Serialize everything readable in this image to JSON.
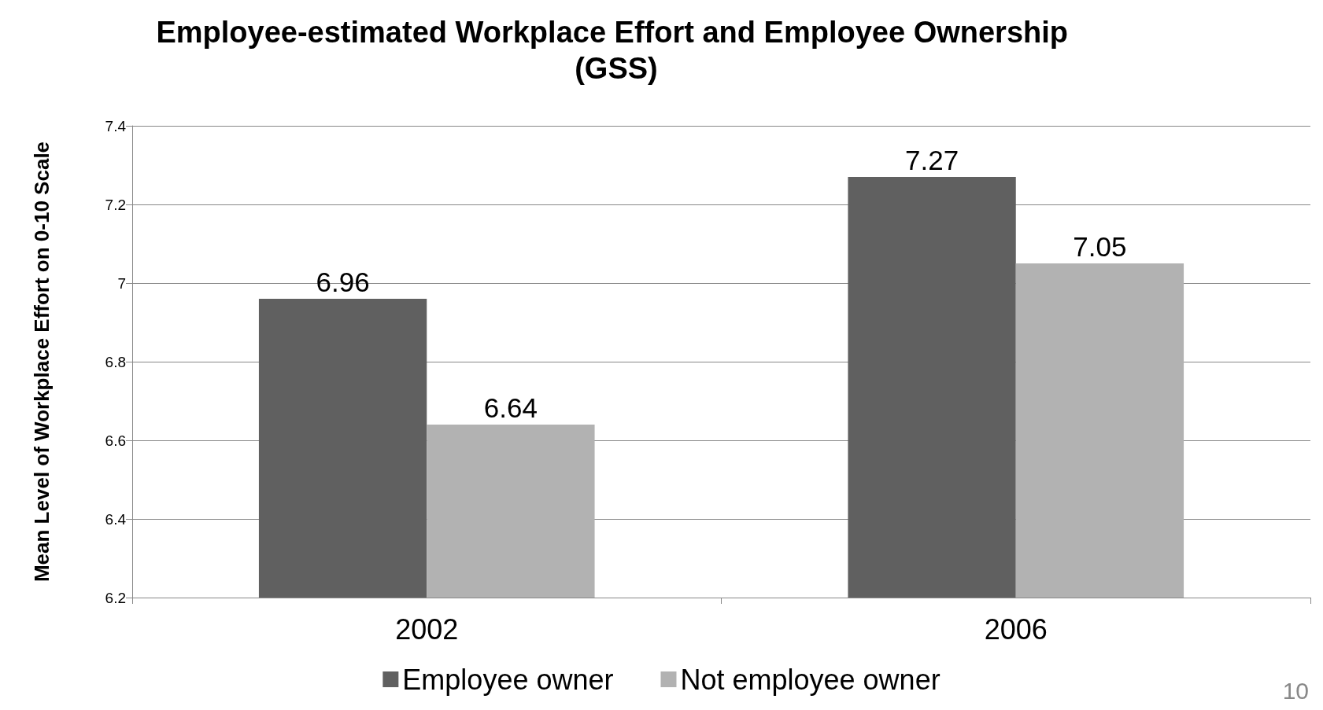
{
  "chart_data": {
    "type": "bar",
    "title": "Employee-estimated Workplace Effort and Employee Ownership (GSS)",
    "ylabel": "Mean Level of Workplace Effort on 0-10 Scale",
    "categories": [
      "2002",
      "2006"
    ],
    "series": [
      {
        "name": "Employee owner",
        "color": "#606060",
        "values": [
          6.96,
          7.27
        ]
      },
      {
        "name": "Not employee owner",
        "color": "#b2b2b2",
        "values": [
          6.64,
          7.05
        ]
      }
    ],
    "ylim": [
      6.2,
      7.4
    ],
    "yticks": [
      6.2,
      6.4,
      6.6,
      6.8,
      7,
      7.2,
      7.4
    ],
    "grid": "y",
    "legend": "bottom",
    "data_labels": true,
    "annotations": [
      "10"
    ]
  }
}
